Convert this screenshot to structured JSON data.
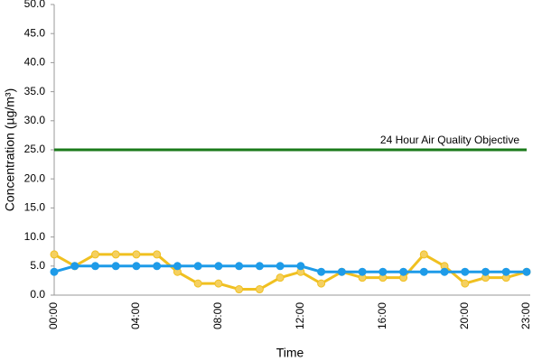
{
  "chart_data": {
    "type": "line",
    "y_label": "Concentration (µg/m³)",
    "x_label": "Time",
    "categories": [
      "00:00",
      null,
      null,
      null,
      "04:00",
      null,
      null,
      null,
      "08:00",
      null,
      null,
      null,
      "12:00",
      null,
      null,
      null,
      "16:00",
      null,
      null,
      null,
      "20:00",
      null,
      null,
      "23:00"
    ],
    "series": [
      {
        "color": "#f0c020",
        "marker_color": "#f5d060",
        "values": [
          7,
          5,
          7,
          7,
          7,
          7,
          4,
          2,
          2,
          1,
          1,
          3,
          4,
          2,
          4,
          3,
          3,
          3,
          7,
          5,
          2,
          3,
          3,
          4
        ]
      },
      {
        "color": "#1e9be8",
        "marker_color": "#1e9be8",
        "values": [
          4,
          5,
          5,
          5,
          5,
          5,
          5,
          5,
          5,
          5,
          5,
          5,
          5,
          4,
          4,
          4,
          4,
          4,
          4,
          4,
          4,
          4,
          4,
          4
        ]
      }
    ],
    "reference_line": {
      "value": 25,
      "label": "24 Hour Air Quality Objective",
      "color": "#1a7a1a"
    },
    "ylim": [
      0,
      50
    ],
    "yticks": [
      {
        "value": 0,
        "label": "0.0"
      },
      {
        "value": 5,
        "label": "5.0"
      },
      {
        "value": 10,
        "label": "10.0"
      },
      {
        "value": 15,
        "label": "15.0"
      },
      {
        "value": 20,
        "label": "20.0"
      },
      {
        "value": 25,
        "label": "25.0"
      },
      {
        "value": 30,
        "label": "30.0"
      },
      {
        "value": 35,
        "label": "35.0"
      },
      {
        "value": 40,
        "label": "40.0"
      },
      {
        "value": 45,
        "label": "45.0"
      },
      {
        "value": 50,
        "label": "50.0"
      }
    ],
    "grid": false
  }
}
